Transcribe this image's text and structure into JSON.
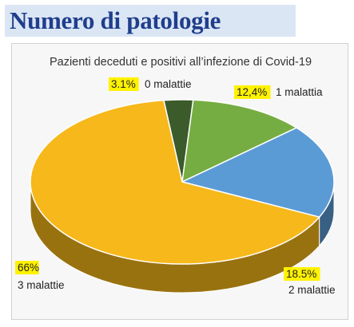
{
  "page": {
    "title": "Numero di patologie"
  },
  "chart_data": {
    "type": "pie",
    "title": "Pazienti deceduti e positivi all’infezione di Covid-19",
    "legend": "none",
    "slices": [
      {
        "label": "0 malattie",
        "value": 3.1,
        "value_label": "3.1%",
        "color": "#3b5b2b"
      },
      {
        "label": "1 malattia",
        "value": 12.4,
        "value_label": "12,4%",
        "color": "#76ad42"
      },
      {
        "label": "2 malattie",
        "value": 18.5,
        "value_label": "18.5%",
        "color": "#5b9bd5"
      },
      {
        "label": "3 malattie",
        "value": 66,
        "value_label": "66%",
        "color": "#f6b81a"
      }
    ],
    "highlight_color": "#fff200"
  }
}
